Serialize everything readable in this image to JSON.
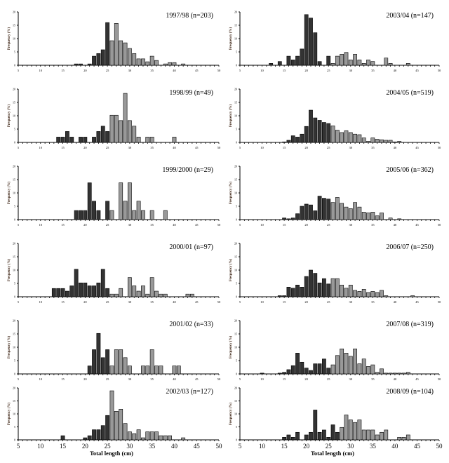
{
  "chart_data": [
    {
      "type": "bar",
      "title": "1997/98 (n=203)",
      "ylabel": "Frequency (%)",
      "xlabel": "",
      "xlim": [
        5,
        50
      ],
      "ylim": [
        0,
        20
      ],
      "xticks": [
        5,
        10,
        15,
        20,
        25,
        30,
        35,
        40,
        45,
        50
      ],
      "yticks": [
        0,
        5,
        10,
        15,
        20
      ],
      "dark_through": 25,
      "colors": {
        "dark": "#333333",
        "light": "#999999"
      },
      "x": [
        18,
        19,
        21,
        22,
        23,
        24,
        25,
        26,
        27,
        28,
        29,
        30,
        31,
        32,
        33,
        34,
        35,
        36,
        38,
        39,
        40,
        42
      ],
      "y": [
        0.5,
        0.5,
        0.5,
        3.4,
        4.4,
        5.8,
        16,
        9.2,
        15.7,
        9.2,
        8.4,
        6.3,
        4.4,
        2.4,
        2.4,
        1.3,
        3.4,
        1.8,
        0.5,
        1,
        1,
        0.5
      ]
    },
    {
      "type": "bar",
      "title": "2003/04 (n=147)",
      "ylabel": "Frequency (%)",
      "xlabel": "",
      "xlim": [
        5,
        50
      ],
      "ylim": [
        0,
        20
      ],
      "xticks": [
        5,
        10,
        15,
        20,
        25,
        30,
        35,
        40,
        45,
        50
      ],
      "yticks": [
        0,
        5,
        10,
        15,
        20
      ],
      "dark_through": 25,
      "colors": {
        "dark": "#333333",
        "light": "#999999"
      },
      "x": [
        12,
        14,
        16,
        17,
        18,
        19,
        20,
        21,
        22,
        23,
        25,
        26,
        27,
        28,
        29,
        30,
        31,
        32,
        33,
        34,
        35,
        38,
        39,
        43
      ],
      "y": [
        0.7,
        1.4,
        3.4,
        2,
        3.4,
        6.1,
        19,
        17.7,
        12.2,
        1.4,
        3.4,
        0.7,
        3.4,
        4.1,
        4.8,
        2,
        4.1,
        2,
        0.7,
        2,
        1.4,
        2.7,
        0.7,
        0.7
      ]
    },
    {
      "type": "bar",
      "title": "1998/99 (n=49)",
      "ylabel": "Frequency (%)",
      "xlabel": "",
      "xlim": [
        5,
        50
      ],
      "ylim": [
        0,
        20
      ],
      "xticks": [
        5,
        10,
        15,
        20,
        25,
        30,
        35,
        40,
        45,
        50
      ],
      "yticks": [
        0,
        5,
        10,
        15,
        20
      ],
      "dark_through": 25,
      "colors": {
        "dark": "#333333",
        "light": "#999999"
      },
      "x": [
        14,
        15,
        16,
        17,
        19,
        20,
        22,
        23,
        24,
        25,
        26,
        27,
        28,
        29,
        30,
        31,
        32,
        34,
        35,
        40
      ],
      "y": [
        2,
        2,
        4.1,
        2,
        2,
        2,
        2,
        4.1,
        6.1,
        4.1,
        10.2,
        10.2,
        8.2,
        18.4,
        8.2,
        6.1,
        2,
        2,
        2,
        2
      ]
    },
    {
      "type": "bar",
      "title": "2004/05 (n=519)",
      "ylabel": "Frequency (%)",
      "xlabel": "",
      "xlim": [
        5,
        50
      ],
      "ylim": [
        0,
        20
      ],
      "xticks": [
        5,
        10,
        15,
        20,
        25,
        30,
        35,
        40,
        45,
        50
      ],
      "yticks": [
        0,
        5,
        10,
        15,
        20
      ],
      "dark_through": 25,
      "colors": {
        "dark": "#333333",
        "light": "#999999"
      },
      "x": [
        15,
        16,
        17,
        18,
        19,
        20,
        21,
        22,
        23,
        24,
        25,
        26,
        27,
        28,
        29,
        30,
        31,
        32,
        33,
        34,
        35,
        36,
        37,
        38,
        39,
        40,
        41
      ],
      "y": [
        0.2,
        0.8,
        2.5,
        2,
        3.1,
        6,
        12.1,
        9.2,
        8.3,
        7.5,
        7.1,
        6.2,
        4.6,
        3.7,
        4.4,
        3.7,
        3.1,
        2.9,
        1.7,
        0.4,
        1.7,
        1.2,
        1,
        0.8,
        0.8,
        0.2,
        0.4
      ]
    },
    {
      "type": "bar",
      "title": "1999/2000 (n=29)",
      "ylabel": "Frequency (%)",
      "xlabel": "",
      "xlim": [
        5,
        50
      ],
      "ylim": [
        0,
        20
      ],
      "xticks": [
        5,
        10,
        15,
        20,
        25,
        30,
        35,
        40,
        45,
        50
      ],
      "yticks": [
        0,
        5,
        10,
        15,
        20
      ],
      "dark_through": 25,
      "colors": {
        "dark": "#333333",
        "light": "#999999"
      },
      "x": [
        18,
        19,
        20,
        21,
        22,
        23,
        25,
        26,
        28,
        29,
        30,
        31,
        32,
        33,
        35,
        38
      ],
      "y": [
        3.4,
        3.4,
        3.4,
        13.8,
        6.9,
        3.4,
        6.9,
        3.4,
        13.8,
        6.9,
        13.8,
        3.4,
        6.9,
        3.4,
        3.4,
        3.4
      ]
    },
    {
      "type": "bar",
      "title": "2005/06 (n=362)",
      "ylabel": "Frequency (%)",
      "xlabel": "",
      "xlim": [
        5,
        50
      ],
      "ylim": [
        0,
        20
      ],
      "xticks": [
        5,
        10,
        15,
        20,
        25,
        30,
        35,
        40,
        45,
        50
      ],
      "yticks": [
        0,
        5,
        10,
        15,
        20
      ],
      "dark_through": 25,
      "colors": {
        "dark": "#333333",
        "light": "#999999"
      },
      "x": [
        15,
        16,
        17,
        18,
        19,
        20,
        21,
        22,
        23,
        24,
        25,
        26,
        27,
        28,
        29,
        30,
        31,
        32,
        33,
        34,
        35,
        36,
        37,
        39,
        41
      ],
      "y": [
        0.6,
        0.3,
        0.6,
        2.2,
        5,
        5.8,
        5.5,
        3.3,
        8.8,
        8,
        7.7,
        6.4,
        8.3,
        6.1,
        4.7,
        4.1,
        6.4,
        4.7,
        2.8,
        2.5,
        2.8,
        1.4,
        2.5,
        0.6,
        0.3
      ]
    },
    {
      "type": "bar",
      "title": "2000/01 (n=97)",
      "ylabel": "Frequency (%)",
      "xlabel": "",
      "xlim": [
        5,
        50
      ],
      "ylim": [
        0,
        20
      ],
      "xticks": [
        5,
        10,
        15,
        20,
        25,
        30,
        35,
        40,
        45,
        50
      ],
      "yticks": [
        0,
        5,
        10,
        15,
        20
      ],
      "dark_through": 25,
      "colors": {
        "dark": "#333333",
        "light": "#999999"
      },
      "x": [
        13,
        14,
        15,
        16,
        17,
        18,
        19,
        20,
        21,
        22,
        23,
        24,
        25,
        26,
        27,
        28,
        30,
        31,
        32,
        33,
        34,
        35,
        36,
        37,
        38,
        43,
        44
      ],
      "y": [
        3.1,
        3.1,
        3.1,
        2.1,
        4.1,
        10.3,
        5.2,
        5.2,
        4.1,
        4.1,
        5.2,
        10.3,
        3.1,
        1,
        1,
        3.1,
        7.2,
        4.1,
        2.1,
        4.1,
        1,
        7.2,
        2.1,
        1,
        1,
        1,
        1
      ]
    },
    {
      "type": "bar",
      "title": "2006/07 (n=250)",
      "ylabel": "Frequency (%)",
      "xlabel": "",
      "xlim": [
        5,
        50
      ],
      "ylim": [
        0,
        20
      ],
      "xticks": [
        5,
        10,
        15,
        20,
        25,
        30,
        35,
        40,
        45,
        50
      ],
      "yticks": [
        0,
        5,
        10,
        15,
        20
      ],
      "dark_through": 25,
      "colors": {
        "dark": "#333333",
        "light": "#999999"
      },
      "x": [
        14,
        15,
        16,
        17,
        18,
        19,
        20,
        21,
        22,
        23,
        24,
        25,
        26,
        27,
        28,
        29,
        30,
        31,
        32,
        33,
        34,
        35,
        36,
        37,
        38,
        44
      ],
      "y": [
        0.4,
        0.4,
        3.6,
        3.2,
        4.4,
        3.6,
        7.6,
        10,
        8.8,
        5.2,
        6.8,
        4.8,
        6.8,
        6.8,
        4.4,
        3.2,
        4.4,
        2.4,
        2,
        2.8,
        1.6,
        2,
        1.6,
        2.4,
        0.4,
        0.4
      ]
    },
    {
      "type": "bar",
      "title": "2001/02 (n=33)",
      "ylabel": "Frequency (%)",
      "xlabel": "",
      "xlim": [
        5,
        50
      ],
      "ylim": [
        0,
        20
      ],
      "xticks": [
        5,
        10,
        15,
        20,
        25,
        30,
        35,
        40,
        45,
        50
      ],
      "yticks": [
        0,
        5,
        10,
        15,
        20
      ],
      "dark_through": 25,
      "colors": {
        "dark": "#333333",
        "light": "#999999"
      },
      "x": [
        21,
        22,
        23,
        24,
        25,
        26,
        27,
        28,
        29,
        30,
        33,
        34,
        35,
        36,
        37,
        40,
        41
      ],
      "y": [
        3,
        9.1,
        15.2,
        6.1,
        9.1,
        3,
        9.1,
        9.1,
        6.1,
        3,
        3,
        3,
        9.1,
        3,
        3,
        3,
        3
      ]
    },
    {
      "type": "bar",
      "title": "2007/08 (n=319)",
      "ylabel": "Frequency (%)",
      "xlabel": "",
      "xlim": [
        5,
        50
      ],
      "ylim": [
        0,
        20
      ],
      "xticks": [
        5,
        10,
        15,
        20,
        25,
        30,
        35,
        40,
        45,
        50
      ],
      "yticks": [
        0,
        5,
        10,
        15,
        20
      ],
      "dark_through": 25,
      "colors": {
        "dark": "#333333",
        "light": "#999999"
      },
      "x": [
        10,
        14,
        15,
        16,
        17,
        18,
        19,
        20,
        21,
        22,
        23,
        24,
        25,
        26,
        27,
        28,
        29,
        30,
        31,
        32,
        33,
        34,
        35,
        36,
        37,
        38,
        39,
        40,
        41,
        42,
        43
      ],
      "y": [
        0.3,
        0.3,
        0.6,
        1.6,
        3.1,
        7.8,
        4.4,
        2.2,
        1.3,
        3.8,
        3.8,
        5.6,
        2.2,
        3.4,
        6.9,
        9.4,
        7.8,
        6.6,
        9.4,
        3.8,
        5.6,
        2.8,
        3.4,
        0.6,
        1.9,
        0.3,
        0.3,
        0.3,
        0.3,
        0.3,
        0.6
      ]
    },
    {
      "type": "bar",
      "title": "2002/03 (n=127)",
      "ylabel": "Frequency (%)",
      "xlabel": "Total length (cm)",
      "xlim": [
        5,
        50
      ],
      "ylim": [
        0,
        20
      ],
      "xticks": [
        5,
        10,
        15,
        20,
        25,
        30,
        35,
        40,
        45,
        50
      ],
      "yticks": [
        0,
        5,
        10,
        15,
        20
      ],
      "dark_through": 25,
      "colors": {
        "dark": "#333333",
        "light": "#999999"
      },
      "x": [
        15,
        20,
        21,
        22,
        23,
        24,
        25,
        26,
        27,
        28,
        29,
        30,
        31,
        32,
        33,
        34,
        35,
        36,
        37,
        38,
        39,
        42
      ],
      "y": [
        1.6,
        0.8,
        1.6,
        3.9,
        3.9,
        5.5,
        9.4,
        18.9,
        11,
        11.8,
        6.3,
        3.1,
        2.4,
        3.9,
        0.8,
        3.1,
        3.1,
        3.1,
        1.6,
        1.6,
        1.6,
        0.8
      ]
    },
    {
      "type": "bar",
      "title": "2008/09 (n=104)",
      "ylabel": "Frequency (%)",
      "xlabel": "Total length (cm)",
      "xlim": [
        5,
        50
      ],
      "ylim": [
        0,
        20
      ],
      "xticks": [
        5,
        10,
        15,
        20,
        25,
        30,
        35,
        40,
        45,
        50
      ],
      "yticks": [
        0,
        5,
        10,
        15,
        20
      ],
      "dark_through": 27,
      "colors": {
        "dark": "#333333",
        "light": "#999999"
      },
      "x": [
        15,
        16,
        17,
        18,
        20,
        21,
        22,
        23,
        24,
        25,
        26,
        27,
        28,
        29,
        30,
        31,
        32,
        33,
        34,
        35,
        36,
        37,
        38,
        41,
        42,
        43
      ],
      "y": [
        1,
        1.9,
        1,
        2.9,
        1.9,
        2.9,
        11.5,
        2.9,
        3.8,
        1,
        5.8,
        2.9,
        4.8,
        9.6,
        7.7,
        6.7,
        7.7,
        3.8,
        3.8,
        3.8,
        1.9,
        2.9,
        3.8,
        1,
        1,
        1.9
      ]
    }
  ]
}
